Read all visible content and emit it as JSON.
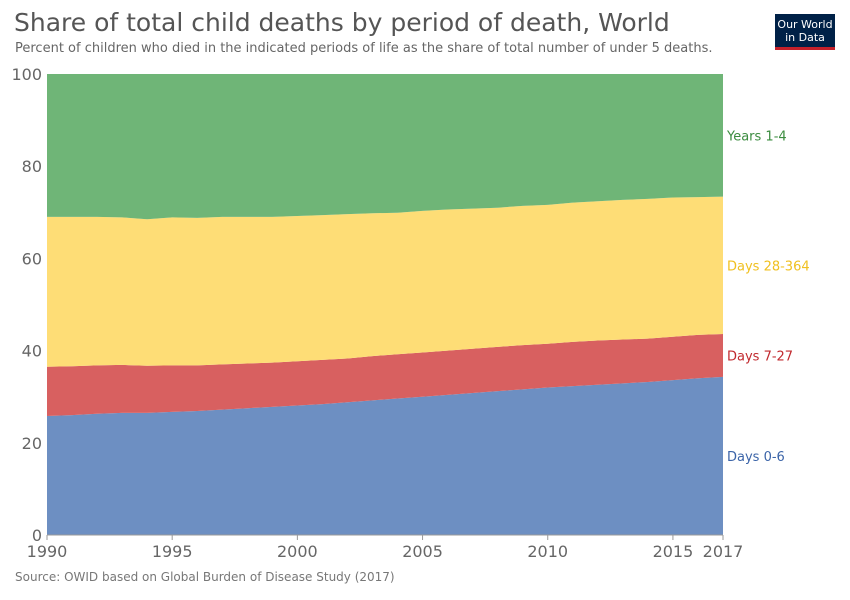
{
  "header": {
    "title": "Share of total child deaths by period of death, World",
    "subtitle": "Percent of children who died in the indicated periods of life as the share of total number of under 5 deaths.",
    "logo_line1": "Our World",
    "logo_line2": "in Data"
  },
  "footer": {
    "source": "Source: OWID based on Global Burden of Disease Study (2017)"
  },
  "colors": {
    "days_0_6": "#6d8fc2",
    "days_7_27": "#d86060",
    "days_28_364": "#fedd76",
    "years_1_4": "#6fb577",
    "label_days_0_6": "#3b64a8",
    "label_days_7_27": "#c1292e",
    "label_days_28_364": "#f0c020",
    "label_years_1_4": "#3b8c3f",
    "axis_text": "#666666"
  },
  "chart_data": {
    "type": "area",
    "stacked": true,
    "title": "Share of total child deaths by period of death, World",
    "x": [
      1990,
      1991,
      1992,
      1993,
      1994,
      1995,
      1996,
      1997,
      1998,
      1999,
      2000,
      2001,
      2002,
      2003,
      2004,
      2005,
      2006,
      2007,
      2008,
      2009,
      2010,
      2011,
      2012,
      2013,
      2014,
      2015,
      2016,
      2017
    ],
    "xticks": [
      1990,
      1995,
      2000,
      2005,
      2010,
      2015,
      2017
    ],
    "xlim": [
      1990,
      2017
    ],
    "ylim": [
      0,
      100
    ],
    "yticks": [
      0,
      20,
      40,
      60,
      80,
      100
    ],
    "xlabel": "",
    "ylabel": "",
    "grid": false,
    "legend_placement": "right, inline labels",
    "series": [
      {
        "name": "Days 0-6",
        "color_key": "days_0_6",
        "values": [
          25.8,
          26.0,
          26.3,
          26.5,
          26.5,
          26.7,
          26.9,
          27.2,
          27.5,
          27.8,
          28.1,
          28.4,
          28.8,
          29.2,
          29.6,
          30.0,
          30.4,
          30.8,
          31.2,
          31.6,
          32.0,
          32.3,
          32.6,
          32.9,
          33.2,
          33.6,
          34.0,
          34.3
        ],
        "label_year_anchor": 2017
      },
      {
        "name": "Days 7-27",
        "color_key": "days_7_27",
        "values": [
          10.7,
          10.6,
          10.5,
          10.4,
          10.2,
          10.1,
          9.9,
          9.8,
          9.7,
          9.6,
          9.6,
          9.6,
          9.5,
          9.6,
          9.6,
          9.6,
          9.6,
          9.6,
          9.6,
          9.6,
          9.5,
          9.6,
          9.6,
          9.5,
          9.4,
          9.4,
          9.4,
          9.3
        ]
      },
      {
        "name": "Days 28-364",
        "color_key": "days_28_364",
        "values": [
          32.5,
          32.4,
          32.2,
          32.0,
          31.8,
          32.1,
          32.0,
          32.0,
          31.8,
          31.6,
          31.5,
          31.4,
          31.3,
          31.0,
          30.7,
          30.7,
          30.6,
          30.4,
          30.2,
          30.2,
          30.1,
          30.2,
          30.2,
          30.3,
          30.3,
          30.2,
          29.9,
          29.8
        ]
      },
      {
        "name": "Years 1-4",
        "color_key": "years_1_4",
        "values": [
          31.0,
          31.0,
          31.0,
          31.1,
          31.5,
          31.1,
          31.2,
          31.0,
          31.0,
          31.0,
          30.8,
          30.6,
          30.4,
          30.2,
          30.1,
          29.7,
          29.4,
          29.2,
          29.0,
          28.6,
          28.4,
          27.9,
          27.6,
          27.3,
          27.1,
          26.8,
          26.7,
          26.6
        ]
      }
    ]
  }
}
